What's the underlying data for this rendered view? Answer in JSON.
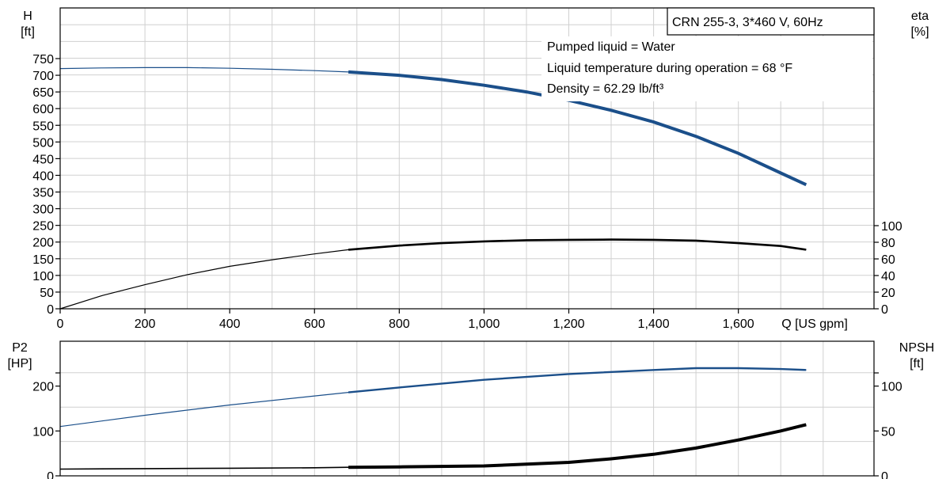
{
  "colors": {
    "head": "#1b4f8a",
    "power": "#1b4f8a",
    "eta": "#000000",
    "npsh": "#000000",
    "grid": "#d0d0d0"
  },
  "info_box": {
    "title": "CRN 255-3, 3*460 V, 60Hz",
    "lines": [
      "Pumped liquid = Water",
      "Liquid temperature during operation = 68 °F",
      "Density = 62.29 lb/ft³"
    ]
  },
  "chart_data": [
    {
      "type": "line",
      "xlabel": "Q [US gpm]",
      "x_ticks": [
        "0",
        "200",
        "400",
        "600",
        "800",
        "1,000",
        "1,200",
        "1,400",
        "1,600"
      ],
      "xlim": [
        0,
        1920
      ],
      "left_axis": {
        "label": "H",
        "unit": "[ft]",
        "ylim": [
          0,
          750
        ],
        "ticks": [
          0,
          50,
          100,
          150,
          200,
          250,
          300,
          350,
          400,
          450,
          500,
          550,
          600,
          650,
          700,
          750
        ]
      },
      "right_axis": {
        "label": "eta",
        "unit": "[%]",
        "ylim": [
          0,
          100
        ],
        "ticks": [
          0,
          20,
          40,
          60,
          80,
          100
        ]
      },
      "series": [
        {
          "axis": "left",
          "color": "#1b4f8a",
          "x": [
            0,
            100,
            200,
            300,
            400,
            500,
            600,
            680,
            800,
            900,
            1000,
            1100,
            1200,
            1300,
            1400,
            1500,
            1600,
            1700,
            1760
          ],
          "y": [
            720,
            722,
            723,
            723,
            721,
            718,
            714,
            710,
            700,
            687,
            670,
            650,
            625,
            595,
            560,
            517,
            466,
            407,
            372
          ]
        },
        {
          "axis": "right",
          "color": "#000000",
          "x": [
            0,
            100,
            200,
            300,
            400,
            500,
            600,
            680,
            800,
            900,
            1000,
            1100,
            1200,
            1300,
            1400,
            1500,
            1600,
            1700,
            1760
          ],
          "y": [
            0,
            16,
            29,
            41,
            51,
            59,
            66,
            71,
            76,
            79,
            81,
            82.5,
            83,
            83.2,
            83,
            82,
            79,
            75.5,
            71
          ]
        }
      ]
    },
    {
      "type": "line",
      "xlim": [
        0,
        1920
      ],
      "left_axis": {
        "label": "P2",
        "unit": "[HP]",
        "ylim": [
          0,
          300
        ],
        "ticks": [
          0,
          100,
          200
        ]
      },
      "right_axis": {
        "label": "NPSH",
        "unit": "[ft]",
        "ylim": [
          0,
          150
        ],
        "ticks": [
          0,
          50,
          100
        ]
      },
      "series": [
        {
          "axis": "left",
          "color": "#1b4f8a",
          "x": [
            0,
            200,
            400,
            600,
            680,
            800,
            1000,
            1200,
            1400,
            1500,
            1600,
            1700,
            1760
          ],
          "y": [
            110,
            135,
            158,
            178,
            186,
            197,
            214,
            227,
            236,
            240,
            240,
            238,
            236
          ]
        },
        {
          "axis": "right",
          "color": "#000000",
          "x": [
            0,
            200,
            400,
            600,
            680,
            800,
            1000,
            1200,
            1300,
            1400,
            1500,
            1600,
            1700,
            1760
          ],
          "y": [
            7.5,
            8,
            8.5,
            9,
            9.5,
            10,
            11,
            15,
            19,
            24,
            31,
            40,
            50,
            57
          ]
        }
      ]
    }
  ]
}
